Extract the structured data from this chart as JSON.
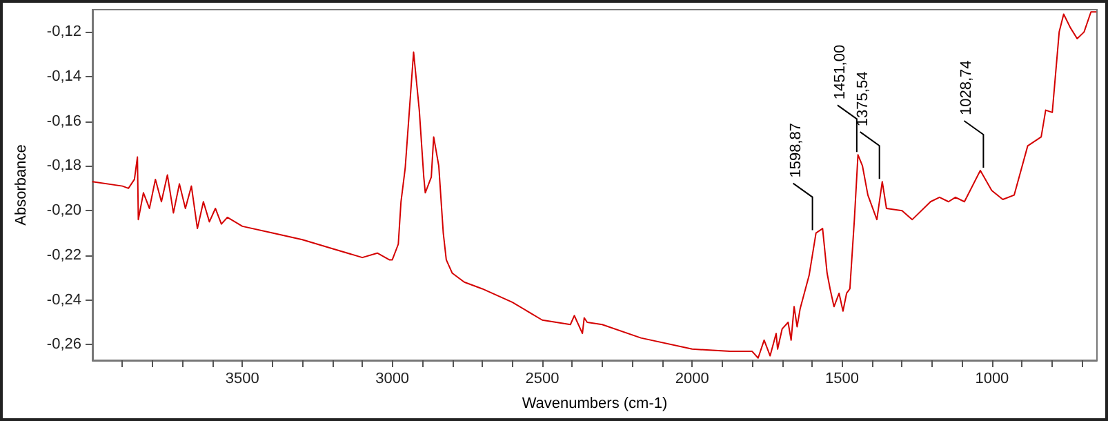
{
  "chart_data": {
    "type": "line",
    "xlabel": "Wavenumbers (cm-1)",
    "ylabel": "Absorbance",
    "xlim": [
      4000,
      650
    ],
    "ylim": [
      -0.267,
      -0.11
    ],
    "xticks": [
      {
        "value": 3900,
        "label": null
      },
      {
        "value": 3800,
        "label": null
      },
      {
        "value": 3700,
        "label": null
      },
      {
        "value": 3600,
        "label": null
      },
      3500,
      {
        "value": 3400,
        "label": null
      },
      {
        "value": 3300,
        "label": null
      },
      {
        "value": 3200,
        "label": null
      },
      {
        "value": 3100,
        "label": null
      },
      3000,
      {
        "value": 2900,
        "label": null
      },
      {
        "value": 2800,
        "label": null
      },
      {
        "value": 2700,
        "label": null
      },
      {
        "value": 2600,
        "label": null
      },
      2500,
      {
        "value": 2400,
        "label": null
      },
      {
        "value": 2300,
        "label": null
      },
      {
        "value": 2200,
        "label": null
      },
      {
        "value": 2100,
        "label": null
      },
      2000,
      {
        "value": 1900,
        "label": null
      },
      {
        "value": 1800,
        "label": null
      },
      {
        "value": 1700,
        "label": null
      },
      {
        "value": 1600,
        "label": null
      },
      1500,
      {
        "value": 1400,
        "label": null
      },
      {
        "value": 1300,
        "label": null
      },
      {
        "value": 1200,
        "label": null
      },
      {
        "value": 1100,
        "label": null
      },
      1000,
      {
        "value": 900,
        "label": null
      },
      {
        "value": 800,
        "label": null
      },
      {
        "value": 700,
        "label": null
      }
    ],
    "yticks": [
      {
        "value": -0.26,
        "label": "-0,26"
      },
      {
        "value": -0.24,
        "label": "-0,24"
      },
      {
        "value": -0.22,
        "label": "-0,22"
      },
      {
        "value": -0.2,
        "label": "-0,20"
      },
      {
        "value": -0.18,
        "label": "-0,18"
      },
      {
        "value": -0.16,
        "label": "-0,16"
      },
      {
        "value": -0.14,
        "label": "-0,14"
      },
      {
        "value": -0.12,
        "label": "-0,12"
      }
    ],
    "marker": "none",
    "line_style": "solid",
    "x": [
      4000,
      3900,
      3880,
      3860,
      3850,
      3847,
      3830,
      3810,
      3790,
      3770,
      3750,
      3730,
      3710,
      3690,
      3670,
      3650,
      3630,
      3610,
      3590,
      3570,
      3550,
      3500,
      3400,
      3300,
      3200,
      3100,
      3050,
      3010,
      3000,
      2980,
      2971,
      2957,
      2929,
      2910,
      2895,
      2890,
      2870,
      2862,
      2845,
      2830,
      2820,
      2800,
      2760,
      2700,
      2600,
      2500,
      2406,
      2393,
      2366,
      2360,
      2350,
      2300,
      2171,
      2000,
      1873,
      1800,
      1780,
      1760,
      1740,
      1720,
      1715,
      1700,
      1680,
      1670,
      1660,
      1650,
      1640,
      1610,
      1587,
      1565,
      1550,
      1540,
      1527,
      1510,
      1497,
      1485,
      1474,
      1459,
      1447,
      1432,
      1414,
      1384,
      1366,
      1352,
      1300,
      1266,
      1205,
      1175,
      1145,
      1122,
      1092,
      1039,
      1001,
      964,
      926,
      881,
      836,
      821,
      799,
      776,
      761,
      739,
      716,
      693,
      670,
      652
    ],
    "series": [
      {
        "color": "#d40000",
        "values": [
          -0.187,
          -0.189,
          -0.19,
          -0.186,
          -0.176,
          -0.204,
          -0.192,
          -0.199,
          -0.186,
          -0.196,
          -0.184,
          -0.201,
          -0.188,
          -0.199,
          -0.189,
          -0.208,
          -0.196,
          -0.205,
          -0.199,
          -0.206,
          -0.203,
          -0.207,
          -0.21,
          -0.213,
          -0.217,
          -0.221,
          -0.219,
          -0.222,
          -0.222,
          -0.215,
          -0.196,
          -0.181,
          -0.129,
          -0.155,
          -0.185,
          -0.192,
          -0.185,
          -0.167,
          -0.18,
          -0.21,
          -0.222,
          -0.228,
          -0.232,
          -0.235,
          -0.241,
          -0.249,
          -0.251,
          -0.247,
          -0.255,
          -0.248,
          -0.25,
          -0.251,
          -0.257,
          -0.262,
          -0.263,
          -0.263,
          -0.266,
          -0.258,
          -0.265,
          -0.255,
          -0.262,
          -0.253,
          -0.25,
          -0.258,
          -0.243,
          -0.252,
          -0.244,
          -0.229,
          -0.21,
          -0.208,
          -0.228,
          -0.235,
          -0.243,
          -0.237,
          -0.245,
          -0.237,
          -0.235,
          -0.204,
          -0.175,
          -0.18,
          -0.193,
          -0.204,
          -0.187,
          -0.199,
          -0.2,
          -0.204,
          -0.196,
          -0.194,
          -0.196,
          -0.194,
          -0.196,
          -0.182,
          -0.191,
          -0.195,
          -0.193,
          -0.171,
          -0.167,
          -0.155,
          -0.156,
          -0.12,
          -0.112,
          -0.118,
          -0.123,
          -0.12,
          -0.111,
          -0.111
        ]
      }
    ],
    "annotations": [
      {
        "text": "1598,87",
        "x": 1598.87,
        "y": -0.21
      },
      {
        "text": "1451,00",
        "x": 1451,
        "y": -0.175
      },
      {
        "text": "1375,54",
        "x": 1375.54,
        "y": -0.187
      },
      {
        "text": "1028,74",
        "x": 1028.74,
        "y": -0.182
      }
    ]
  }
}
